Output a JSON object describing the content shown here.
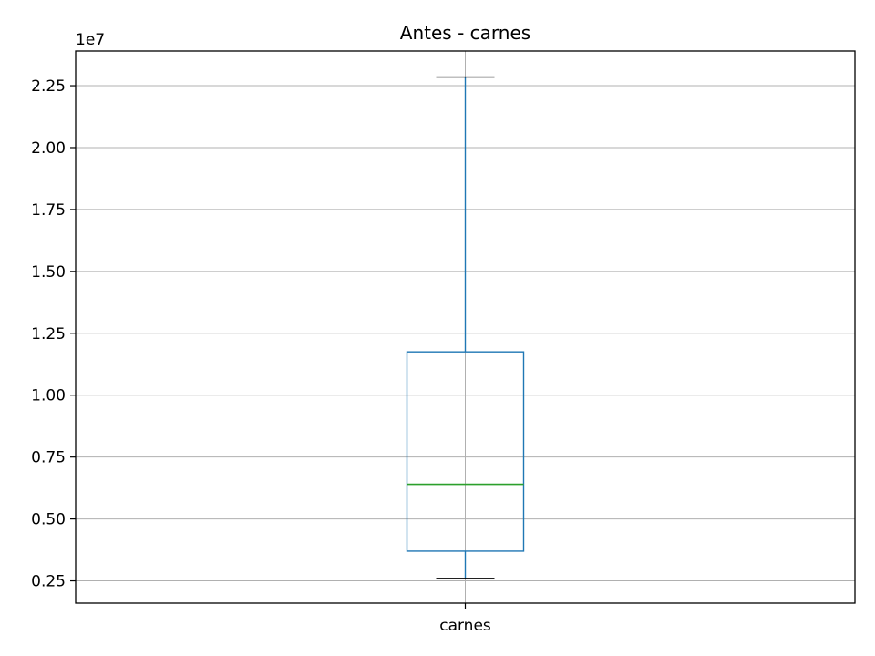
{
  "chart_data": {
    "type": "box",
    "title": "Antes - carnes",
    "xlabel": "",
    "ylabel": "",
    "offset_text": "1e7",
    "categories": [
      "carnes"
    ],
    "boxes": [
      {
        "name": "carnes",
        "whisker_low": 0.26,
        "q1": 0.37,
        "median": 0.64,
        "q3": 1.175,
        "whisker_high": 2.285
      }
    ],
    "y_scale_factor": 10000000,
    "ylim": [
      0.16,
      2.39
    ],
    "yticks": [
      0.25,
      0.5,
      0.75,
      1.0,
      1.25,
      1.5,
      1.75,
      2.0,
      2.25
    ],
    "ytick_labels": [
      "0.25",
      "0.50",
      "0.75",
      "1.00",
      "1.25",
      "1.50",
      "1.75",
      "2.00",
      "2.25"
    ],
    "grid": true,
    "colors": {
      "box": "#1f77b4",
      "median": "#2ca02c",
      "whisker_caps": "#000000",
      "grid": "#b0b0b0",
      "axes": "#000000"
    }
  }
}
